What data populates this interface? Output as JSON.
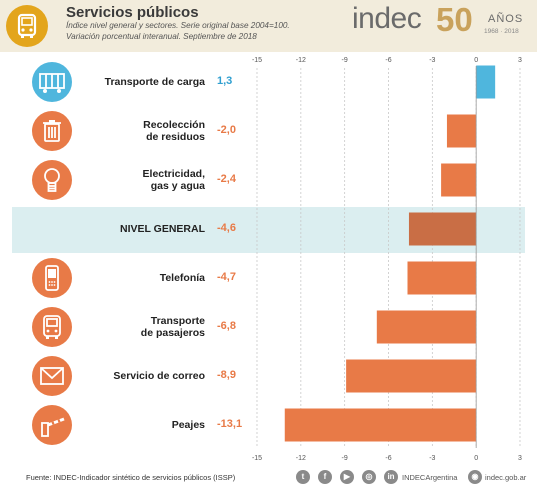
{
  "header": {
    "title": "Servicios públicos",
    "subtitle_line1": "Índice nivel general y sectores. Serie original base 2004=100.",
    "subtitle_line2": "Variación porcentual interanual. Septiembre de 2018",
    "logo": "indec",
    "logo_number": "50",
    "logo_anos": "AÑOS",
    "logo_years": "1968 · 2018"
  },
  "chart_data": {
    "type": "bar",
    "orientation": "horizontal",
    "categories": [
      "Transporte de carga",
      "Recolección de residuos",
      "Electricidad, gas y agua",
      "NIVEL GENERAL",
      "Telefonía",
      "Transporte de pasajeros",
      "Servicio de correo",
      "Peajes"
    ],
    "label_lines": [
      [
        "Transporte de carga"
      ],
      [
        "Recolección",
        "de residuos"
      ],
      [
        "Electricidad,",
        "gas y agua"
      ],
      [
        "NIVEL GENERAL"
      ],
      [
        "Telefonía"
      ],
      [
        "Transporte",
        "de pasajeros"
      ],
      [
        "Servicio de correo"
      ],
      [
        "Peajes"
      ]
    ],
    "values": [
      1.3,
      -2.0,
      -2.4,
      -4.6,
      -4.7,
      -6.8,
      -8.9,
      -13.1
    ],
    "value_labels": [
      "1,3",
      "-2,0",
      "-2,4",
      "-4,6",
      "-4,7",
      "-6,8",
      "-8,9",
      "-13,1"
    ],
    "icons": [
      "train-car-icon",
      "trash-bin-icon",
      "light-bulb-icon",
      "",
      "mobile-phone-icon",
      "bus-icon",
      "envelope-icon",
      "toll-barrier-icon"
    ],
    "highlight_index": 3,
    "xlim": [
      -15,
      3
    ],
    "ticks": [
      -15,
      -12,
      -9,
      -6,
      -3,
      0,
      3
    ],
    "tick_labels": [
      "-15",
      "-12",
      "-9",
      "-6",
      "-3",
      "0",
      "3"
    ],
    "colors": {
      "positive": "#4fb6dd",
      "negative": "#e87a47",
      "highlight": "#c96e45",
      "gridline": "#c8c8c8"
    },
    "grid": true
  },
  "footer": {
    "source": "Fuente: INDEC-Indicador sintético de servicios públicos (ISSP)",
    "social_handle": "INDECArgentina",
    "website": "indec.gob.ar",
    "social_icons": [
      "twitter-icon",
      "facebook-icon",
      "youtube-icon",
      "instagram-icon",
      "linkedin-icon"
    ]
  }
}
